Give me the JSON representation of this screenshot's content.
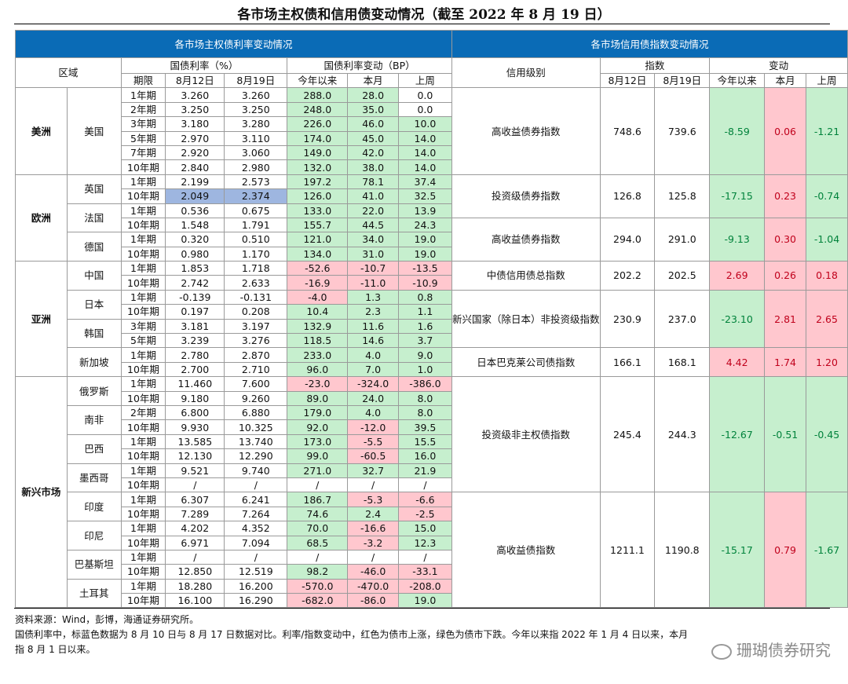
{
  "title": "各市场主权债和信用债变动情况（截至 2022 年 8 月 19 日）",
  "left_header": {
    "bar": "各市场主权债利率变动情况",
    "region_col": "区域",
    "yield_group": "国债利率（%）",
    "change_group": "国债利率变动（BP）",
    "term_col": "期限",
    "date1": "8月12日",
    "date2": "8月19日",
    "ytd": "今年以来",
    "mtd": "本月",
    "wtd": "上周"
  },
  "right_header": {
    "bar": "各市场信用债指数变动情况",
    "rating_col": "信用级别",
    "index_group": "指数",
    "change_group": "变动",
    "date1": "8月12日",
    "date2": "8月19日",
    "ytd": "今年以来",
    "mtd": "本月",
    "wtd": "上周"
  },
  "regions": [
    {
      "name": "美洲",
      "countries": [
        {
          "name": "美国",
          "rows": [
            {
              "term": "1年期",
              "y1": "3.260",
              "y2": "3.260",
              "ytd": "288.0",
              "mtd": "28.0",
              "wtd": "0.0"
            },
            {
              "term": "2年期",
              "y1": "3.250",
              "y2": "3.250",
              "ytd": "248.0",
              "mtd": "35.0",
              "wtd": "0.0"
            },
            {
              "term": "3年期",
              "y1": "3.180",
              "y2": "3.280",
              "ytd": "226.0",
              "mtd": "46.0",
              "wtd": "10.0"
            },
            {
              "term": "5年期",
              "y1": "2.970",
              "y2": "3.110",
              "ytd": "174.0",
              "mtd": "45.0",
              "wtd": "14.0"
            },
            {
              "term": "7年期",
              "y1": "2.920",
              "y2": "3.060",
              "ytd": "149.0",
              "mtd": "42.0",
              "wtd": "14.0"
            },
            {
              "term": "10年期",
              "y1": "2.840",
              "y2": "2.980",
              "ytd": "132.0",
              "mtd": "38.0",
              "wtd": "14.0"
            }
          ]
        }
      ]
    },
    {
      "name": "欧洲",
      "countries": [
        {
          "name": "英国",
          "rows": [
            {
              "term": "1年期",
              "y1": "2.199",
              "y2": "2.573",
              "ytd": "197.2",
              "mtd": "78.1",
              "wtd": "37.4"
            },
            {
              "term": "10年期",
              "y1": "2.049",
              "y2": "2.374",
              "ytd": "126.0",
              "mtd": "41.0",
              "wtd": "32.5"
            }
          ]
        },
        {
          "name": "法国",
          "rows": [
            {
              "term": "1年期",
              "y1": "0.536",
              "y2": "0.675",
              "ytd": "133.0",
              "mtd": "22.0",
              "wtd": "13.9"
            },
            {
              "term": "10年期",
              "y1": "1.548",
              "y2": "1.791",
              "ytd": "155.7",
              "mtd": "44.5",
              "wtd": "24.3"
            }
          ]
        },
        {
          "name": "德国",
          "rows": [
            {
              "term": "1年期",
              "y1": "0.320",
              "y2": "0.510",
              "ytd": "121.0",
              "mtd": "34.0",
              "wtd": "19.0"
            },
            {
              "term": "10年期",
              "y1": "0.980",
              "y2": "1.170",
              "ytd": "134.0",
              "mtd": "31.0",
              "wtd": "19.0"
            }
          ]
        }
      ]
    },
    {
      "name": "亚洲",
      "countries": [
        {
          "name": "中国",
          "rows": [
            {
              "term": "1年期",
              "y1": "1.853",
              "y2": "1.718",
              "ytd": "-52.6",
              "mtd": "-10.7",
              "wtd": "-13.5"
            },
            {
              "term": "10年期",
              "y1": "2.742",
              "y2": "2.633",
              "ytd": "-16.9",
              "mtd": "-11.0",
              "wtd": "-10.9"
            }
          ]
        },
        {
          "name": "日本",
          "rows": [
            {
              "term": "1年期",
              "y1": "-0.139",
              "y2": "-0.131",
              "ytd": "-4.0",
              "mtd": "1.3",
              "wtd": "0.8"
            },
            {
              "term": "10年期",
              "y1": "0.197",
              "y2": "0.208",
              "ytd": "10.4",
              "mtd": "2.3",
              "wtd": "1.1"
            }
          ]
        },
        {
          "name": "韩国",
          "rows": [
            {
              "term": "3年期",
              "y1": "3.181",
              "y2": "3.197",
              "ytd": "132.9",
              "mtd": "11.6",
              "wtd": "1.6"
            },
            {
              "term": "5年期",
              "y1": "3.239",
              "y2": "3.276",
              "ytd": "118.5",
              "mtd": "14.6",
              "wtd": "3.7"
            }
          ]
        },
        {
          "name": "新加坡",
          "rows": [
            {
              "term": "1年期",
              "y1": "2.780",
              "y2": "2.870",
              "ytd": "233.0",
              "mtd": "4.0",
              "wtd": "9.0"
            },
            {
              "term": "10年期",
              "y1": "2.700",
              "y2": "2.710",
              "ytd": "96.0",
              "mtd": "7.0",
              "wtd": "1.0"
            }
          ]
        }
      ]
    },
    {
      "name": "新兴市场",
      "countries": [
        {
          "name": "俄罗斯",
          "rows": [
            {
              "term": "1年期",
              "y1": "11.460",
              "y2": "7.600",
              "ytd": "-23.0",
              "mtd": "-324.0",
              "wtd": "-386.0"
            },
            {
              "term": "10年期",
              "y1": "9.180",
              "y2": "9.260",
              "ytd": "89.0",
              "mtd": "24.0",
              "wtd": "8.0"
            }
          ]
        },
        {
          "name": "南非",
          "rows": [
            {
              "term": "2年期",
              "y1": "6.800",
              "y2": "6.880",
              "ytd": "179.0",
              "mtd": "4.0",
              "wtd": "8.0"
            },
            {
              "term": "10年期",
              "y1": "9.930",
              "y2": "10.325",
              "ytd": "92.0",
              "mtd": "-12.0",
              "wtd": "39.5"
            }
          ]
        },
        {
          "name": "巴西",
          "rows": [
            {
              "term": "1年期",
              "y1": "13.585",
              "y2": "13.740",
              "ytd": "173.0",
              "mtd": "-5.5",
              "wtd": "15.5"
            },
            {
              "term": "10年期",
              "y1": "12.130",
              "y2": "12.290",
              "ytd": "99.0",
              "mtd": "-60.5",
              "wtd": "16.0"
            }
          ]
        },
        {
          "name": "墨西哥",
          "rows": [
            {
              "term": "1年期",
              "y1": "9.521",
              "y2": "9.740",
              "ytd": "271.0",
              "mtd": "32.7",
              "wtd": "21.9"
            },
            {
              "term": "10年期",
              "y1": "/",
              "y2": "/",
              "ytd": "/",
              "mtd": "/",
              "wtd": "/"
            }
          ]
        },
        {
          "name": "印度",
          "rows": [
            {
              "term": "1年期",
              "y1": "6.307",
              "y2": "6.241",
              "ytd": "186.7",
              "mtd": "-5.3",
              "wtd": "-6.6"
            },
            {
              "term": "10年期",
              "y1": "7.289",
              "y2": "7.264",
              "ytd": "74.6",
              "mtd": "2.4",
              "wtd": "-2.5"
            }
          ]
        },
        {
          "name": "印尼",
          "rows": [
            {
              "term": "1年期",
              "y1": "4.202",
              "y2": "4.352",
              "ytd": "70.0",
              "mtd": "-16.6",
              "wtd": "15.0"
            },
            {
              "term": "10年期",
              "y1": "6.971",
              "y2": "7.094",
              "ytd": "68.5",
              "mtd": "-3.2",
              "wtd": "12.3"
            }
          ]
        },
        {
          "name": "巴基斯坦",
          "rows": [
            {
              "term": "1年期",
              "y1": "/",
              "y2": "/",
              "ytd": "/",
              "mtd": "/",
              "wtd": "/"
            },
            {
              "term": "10年期",
              "y1": "12.850",
              "y2": "12.519",
              "ytd": "98.2",
              "mtd": "-46.0",
              "wtd": "-33.1"
            }
          ]
        },
        {
          "name": "土耳其",
          "rows": [
            {
              "term": "1年期",
              "y1": "18.280",
              "y2": "16.200",
              "ytd": "-570.0",
              "mtd": "-470.0",
              "wtd": "-208.0"
            },
            {
              "term": "10年期",
              "y1": "16.100",
              "y2": "16.290",
              "ytd": "-682.0",
              "mtd": "-86.0",
              "wtd": "19.0"
            }
          ]
        }
      ]
    }
  ],
  "credit": [
    {
      "name": "高收益债券指数",
      "d1": "748.6",
      "d2": "739.6",
      "ytd": "-8.59",
      "mtd": "0.06",
      "wtd": "-1.21"
    },
    {
      "name": "投资级债券指数",
      "d1": "126.8",
      "d2": "125.8",
      "ytd": "-17.15",
      "mtd": "0.23",
      "wtd": "-0.74"
    },
    {
      "name": "高收益债券指数",
      "d1": "294.0",
      "d2": "291.0",
      "ytd": "-9.13",
      "mtd": "0.30",
      "wtd": "-1.04"
    },
    {
      "name": "中债信用债总指数",
      "d1": "202.2",
      "d2": "202.5",
      "ytd": "2.69",
      "mtd": "0.26",
      "wtd": "0.18"
    },
    {
      "name": "新兴国家（除日本）非投资级指数",
      "d1": "230.9",
      "d2": "237.0",
      "ytd": "-23.10",
      "mtd": "2.81",
      "wtd": "2.65"
    },
    {
      "name": "日本巴克莱公司债指数",
      "d1": "166.1",
      "d2": "168.1",
      "ytd": "4.42",
      "mtd": "1.74",
      "wtd": "1.20"
    },
    {
      "name": "投资级非主权债指数",
      "d1": "245.4",
      "d2": "244.3",
      "ytd": "-12.67",
      "mtd": "-0.51",
      "wtd": "-0.45"
    },
    {
      "name": "高收益债指数",
      "d1": "1211.1",
      "d2": "1190.8",
      "ytd": "-15.17",
      "mtd": "0.79",
      "wtd": "-1.67"
    }
  ],
  "notes": {
    "source": "资料来源：Wind，彭博，海通证券研究所。",
    "line2": "国债利率中，标蓝色数据为 8 月 10 日与 8 月 17 日数据对比。利率/指数变动中，红色为债市上涨，绿色为债市下跌。今年以来指 2022 年 1 月 4 日以来，本月",
    "line3": "指 8 月 1 日以来。"
  },
  "watermark": "珊瑚债券研究",
  "colors": {
    "bar": "#0a6bb6",
    "green_fill": "#c6efce",
    "red_fill": "#ffc7ce",
    "blue_fill": "#9eb6e0",
    "green_text": "#00823b",
    "red_text": "#c0001b"
  }
}
